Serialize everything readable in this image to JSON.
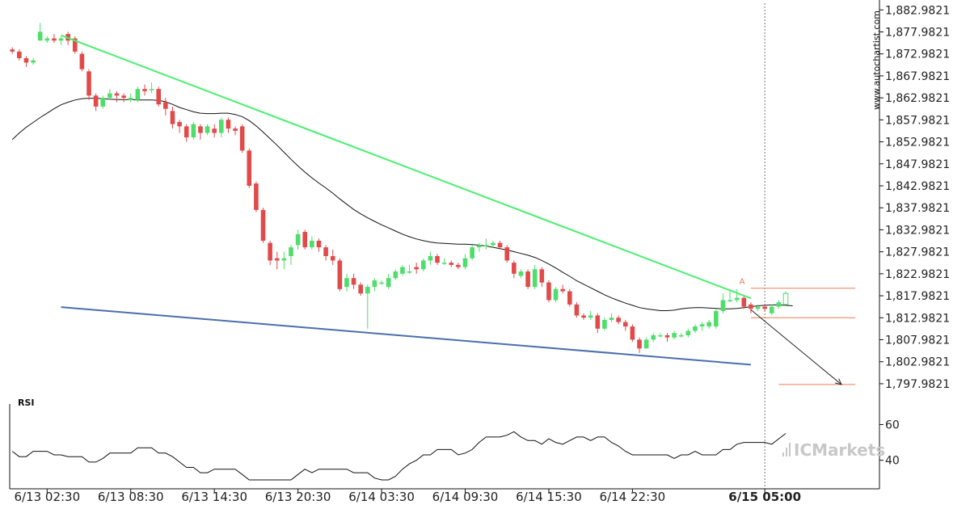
{
  "chart_data": {
    "type": "candlestick",
    "y_ticks": [
      "1,882.9821",
      "1,877.9821",
      "1,872.9821",
      "1,867.9821",
      "1,862.9821",
      "1,857.9821",
      "1,852.9821",
      "1,847.9821",
      "1,842.9821",
      "1,837.9821",
      "1,832.9821",
      "1,827.9821",
      "1,822.9821",
      "1,817.9821",
      "1,812.9821",
      "1,807.9821",
      "1,802.9821",
      "1,797.9821"
    ],
    "ylim": [
      1796.5,
      1884.5
    ],
    "x_ticks": [
      {
        "label": "6/13 02:30",
        "bar": 5
      },
      {
        "label": "6/13 08:30",
        "bar": 17
      },
      {
        "label": "6/13 14:30",
        "bar": 29
      },
      {
        "label": "6/13 20:30",
        "bar": 41
      },
      {
        "label": "6/14 03:30",
        "bar": 53
      },
      {
        "label": "6/14 09:30",
        "bar": 65
      },
      {
        "label": "6/14 15:30",
        "bar": 77
      },
      {
        "label": "6/14 22:30",
        "bar": 89
      },
      {
        "label": "6/15 05:00",
        "bar": 108,
        "bold": true
      }
    ],
    "candles": [
      [
        1874.0,
        1873.5,
        1874.5,
        1873.0
      ],
      [
        1873.5,
        1872.0,
        1874.0,
        1871.5
      ],
      [
        1872.0,
        1871.0,
        1872.5,
        1870.0
      ],
      [
        1871.0,
        1871.5,
        1872.0,
        1870.5
      ],
      [
        1876.0,
        1878.0,
        1880.0,
        1876.0
      ],
      [
        1876.0,
        1876.5,
        1877.0,
        1875.5
      ],
      [
        1876.5,
        1876.0,
        1877.5,
        1875.5
      ],
      [
        1876.0,
        1876.5,
        1877.0,
        1875.0
      ],
      [
        1877.5,
        1876.0,
        1878.0,
        1875.0
      ],
      [
        1876.5,
        1873.5,
        1877.0,
        1873.0
      ],
      [
        1873.0,
        1869.5,
        1873.5,
        1869.0
      ],
      [
        1869.0,
        1863.5,
        1869.5,
        1862.5
      ],
      [
        1863.5,
        1861.0,
        1864.0,
        1860.0
      ],
      [
        1861.0,
        1863.0,
        1863.5,
        1860.5
      ],
      [
        1863.0,
        1864.0,
        1865.0,
        1862.5
      ],
      [
        1864.0,
        1863.5,
        1864.5,
        1862.0
      ],
      [
        1863.5,
        1863.0,
        1864.0,
        1862.0
      ],
      [
        1862.5,
        1863.0,
        1864.0,
        1862.0
      ],
      [
        1862.5,
        1865.0,
        1865.5,
        1862.0
      ],
      [
        1865.0,
        1864.5,
        1866.0,
        1863.5
      ],
      [
        1865.0,
        1865.0,
        1866.5,
        1864.0
      ],
      [
        1865.0,
        1861.5,
        1865.5,
        1861.0
      ],
      [
        1862.0,
        1860.5,
        1863.0,
        1859.0
      ],
      [
        1860.0,
        1857.0,
        1861.0,
        1856.0
      ],
      [
        1857.5,
        1856.5,
        1858.0,
        1855.0
      ],
      [
        1856.5,
        1854.0,
        1857.0,
        1853.0
      ],
      [
        1854.0,
        1857.0,
        1857.5,
        1853.5
      ],
      [
        1856.5,
        1855.0,
        1857.0,
        1853.5
      ],
      [
        1855.0,
        1856.5,
        1857.0,
        1854.5
      ],
      [
        1856.0,
        1855.0,
        1857.0,
        1854.0
      ],
      [
        1855.0,
        1858.0,
        1858.5,
        1854.0
      ],
      [
        1858.0,
        1856.0,
        1858.5,
        1855.0
      ],
      [
        1856.0,
        1855.5,
        1856.5,
        1854.5
      ],
      [
        1856.5,
        1851.0,
        1857.0,
        1850.5
      ],
      [
        1851.0,
        1843.0,
        1851.5,
        1842.5
      ],
      [
        1843.5,
        1837.5,
        1844.0,
        1837.0
      ],
      [
        1837.5,
        1830.5,
        1838.0,
        1830.0
      ],
      [
        1830.0,
        1826.0,
        1830.5,
        1825.0
      ],
      [
        1826.5,
        1826.0,
        1828.0,
        1824.0
      ],
      [
        1826.0,
        1826.5,
        1828.0,
        1824.0
      ],
      [
        1827.0,
        1829.0,
        1829.5,
        1825.0
      ],
      [
        1829.5,
        1832.0,
        1833.0,
        1828.5
      ],
      [
        1832.5,
        1829.0,
        1833.0,
        1828.5
      ],
      [
        1829.0,
        1830.5,
        1831.5,
        1828.5
      ],
      [
        1830.5,
        1829.0,
        1831.0,
        1828.0
      ],
      [
        1829.0,
        1827.0,
        1829.5,
        1826.0
      ],
      [
        1827.0,
        1826.0,
        1828.5,
        1825.0
      ],
      [
        1826.0,
        1819.5,
        1826.5,
        1819.0
      ],
      [
        1820.0,
        1822.0,
        1823.0,
        1819.0
      ],
      [
        1822.0,
        1820.5,
        1823.0,
        1819.5
      ],
      [
        1820.5,
        1818.5,
        1821.0,
        1818.0
      ],
      [
        1818.5,
        1820.0,
        1820.5,
        1810.5
      ],
      [
        1820.0,
        1821.5,
        1822.0,
        1819.0
      ],
      [
        1821.0,
        1821.0,
        1821.5,
        1820.5
      ],
      [
        1820.0,
        1822.0,
        1823.0,
        1819.5
      ],
      [
        1822.0,
        1823.5,
        1824.0,
        1821.5
      ],
      [
        1823.0,
        1824.5,
        1825.0,
        1822.5
      ],
      [
        1823.5,
        1823.5,
        1825.0,
        1823.0
      ],
      [
        1824.5,
        1824.0,
        1825.5,
        1823.0
      ],
      [
        1824.0,
        1826.0,
        1826.5,
        1823.5
      ],
      [
        1826.0,
        1827.0,
        1828.0,
        1825.0
      ],
      [
        1827.0,
        1825.5,
        1827.5,
        1825.0
      ],
      [
        1825.5,
        1825.5,
        1826.5,
        1825.0
      ],
      [
        1825.5,
        1825.0,
        1826.0,
        1824.5
      ],
      [
        1825.0,
        1824.5,
        1825.5,
        1824.0
      ],
      [
        1824.5,
        1826.5,
        1827.5,
        1824.0
      ],
      [
        1826.5,
        1829.0,
        1829.5,
        1826.0
      ],
      [
        1829.0,
        1829.5,
        1830.0,
        1828.0
      ],
      [
        1829.5,
        1829.5,
        1831.0,
        1828.5
      ],
      [
        1829.5,
        1830.0,
        1830.5,
        1829.0
      ],
      [
        1830.0,
        1829.0,
        1830.5,
        1828.5
      ],
      [
        1829.0,
        1826.0,
        1829.5,
        1825.5
      ],
      [
        1825.5,
        1823.0,
        1826.0,
        1822.0
      ],
      [
        1822.5,
        1823.5,
        1824.0,
        1822.0
      ],
      [
        1823.5,
        1820.0,
        1824.0,
        1819.5
      ],
      [
        1820.0,
        1824.0,
        1825.0,
        1819.5
      ],
      [
        1824.0,
        1821.0,
        1824.5,
        1820.0
      ],
      [
        1821.0,
        1817.0,
        1821.5,
        1816.5
      ],
      [
        1817.0,
        1819.5,
        1820.0,
        1816.5
      ],
      [
        1819.5,
        1819.0,
        1820.5,
        1818.5
      ],
      [
        1819.0,
        1816.0,
        1819.5,
        1815.5
      ],
      [
        1816.0,
        1813.5,
        1816.5,
        1813.0
      ],
      [
        1813.5,
        1813.0,
        1814.0,
        1812.5
      ],
      [
        1813.0,
        1813.5,
        1814.5,
        1812.5
      ],
      [
        1813.5,
        1810.5,
        1814.0,
        1809.5
      ],
      [
        1810.5,
        1812.5,
        1813.0,
        1810.0
      ],
      [
        1812.5,
        1813.0,
        1814.0,
        1812.0
      ],
      [
        1813.0,
        1812.0,
        1813.5,
        1811.5
      ],
      [
        1812.0,
        1811.0,
        1812.5,
        1810.0
      ],
      [
        1811.0,
        1808.0,
        1811.5,
        1807.5
      ],
      [
        1808.0,
        1806.0,
        1808.5,
        1805.0
      ],
      [
        1806.0,
        1808.0,
        1808.5,
        1806.0
      ],
      [
        1808.0,
        1809.0,
        1809.5,
        1807.5
      ],
      [
        1809.0,
        1809.0,
        1809.5,
        1808.5
      ],
      [
        1809.0,
        1808.5,
        1809.5,
        1807.5
      ],
      [
        1808.5,
        1809.5,
        1810.0,
        1808.0
      ],
      [
        1809.0,
        1809.0,
        1809.5,
        1808.5
      ],
      [
        1809.0,
        1810.0,
        1810.5,
        1808.5
      ],
      [
        1810.0,
        1811.0,
        1811.5,
        1809.5
      ],
      [
        1811.0,
        1811.5,
        1812.0,
        1810.0
      ],
      [
        1811.0,
        1812.0,
        1812.5,
        1810.5
      ],
      [
        1811.0,
        1814.5,
        1815.0,
        1810.5
      ],
      [
        1814.5,
        1817.0,
        1818.5,
        1814.0
      ],
      [
        1817.0,
        1817.0,
        1819.5,
        1816.5
      ],
      [
        1817.0,
        1817.5,
        1819.5,
        1816.5
      ],
      [
        1817.5,
        1815.5,
        1818.0,
        1815.0
      ],
      [
        1816.0,
        1815.0,
        1816.5,
        1814.0
      ],
      [
        1815.0,
        1815.5,
        1816.0,
        1814.5
      ],
      [
        1815.5,
        1815.0,
        1816.0,
        1814.5
      ],
      [
        1814.0,
        1815.5,
        1816.0,
        1813.5
      ],
      [
        1815.5,
        1816.5,
        1817.0,
        1815.0
      ],
      [
        1816.0,
        1818.5,
        1819.0,
        1816.0
      ]
    ],
    "ma_series": [
      1853.5,
      1855.0,
      1856.3,
      1857.4,
      1858.5,
      1859.5,
      1860.5,
      1861.4,
      1862.0,
      1862.5,
      1862.8,
      1862.9,
      1862.9,
      1862.8,
      1862.7,
      1862.6,
      1862.6,
      1862.6,
      1862.5,
      1862.5,
      1862.5,
      1862.4,
      1862.1,
      1861.5,
      1860.8,
      1860.3,
      1859.8,
      1859.5,
      1859.4,
      1859.4,
      1859.5,
      1859.5,
      1859.2,
      1858.7,
      1857.8,
      1856.6,
      1855.2,
      1853.7,
      1852.2,
      1850.6,
      1849.0,
      1847.5,
      1846.1,
      1844.8,
      1843.6,
      1842.5,
      1841.3,
      1840.0,
      1838.8,
      1837.6,
      1836.6,
      1835.7,
      1834.9,
      1834.1,
      1833.4,
      1832.7,
      1832.0,
      1831.4,
      1830.9,
      1830.5,
      1830.2,
      1830.0,
      1829.9,
      1829.8,
      1829.7,
      1829.7,
      1829.6,
      1829.5,
      1829.3,
      1829.0,
      1828.7,
      1828.4,
      1828.0,
      1827.6,
      1827.2,
      1826.7,
      1826.0,
      1825.2,
      1824.3,
      1823.3,
      1822.4,
      1821.4,
      1820.6,
      1819.8,
      1819.0,
      1818.2,
      1817.5,
      1816.9,
      1816.3,
      1815.8,
      1815.3,
      1815.0,
      1814.8,
      1814.6,
      1814.6,
      1814.7,
      1815.0,
      1815.2,
      1815.3,
      1815.3,
      1815.2,
      1815.1,
      1815.0,
      1815.0,
      1815.1,
      1815.3,
      1815.5,
      1815.7,
      1815.8,
      1815.9,
      1815.9,
      1815.8,
      1815.7
    ],
    "resistance_line": {
      "start": [
        7,
        1877.2
      ],
      "end": [
        106,
        1817.4
      ]
    },
    "support_line": {
      "start": [
        7,
        1815.4
      ],
      "end": [
        106,
        1802.3
      ]
    },
    "forecast_arrow": {
      "start": [
        106,
        1814.8
      ],
      "end": [
        119,
        1797.8
      ]
    },
    "levels": [
      {
        "value": 1819.7,
        "from_bar": 106,
        "to_bar": 121
      },
      {
        "value": 1813.0,
        "from_bar": 106,
        "to_bar": 121
      },
      {
        "value": 1797.8,
        "from_bar": 110,
        "to_bar": 121
      }
    ],
    "marker_label": {
      "text": "A",
      "bar": 104,
      "value": 1820.7
    },
    "current_bar": 108,
    "rsi": {
      "label": "RSI",
      "y_ticks": [
        "60",
        "40"
      ],
      "ylim": [
        24,
        67
      ],
      "values": [
        45,
        42,
        42,
        45,
        45,
        45,
        43,
        43,
        42,
        42,
        42,
        39,
        39,
        41,
        44,
        44,
        44,
        44,
        47,
        47,
        47,
        44,
        44,
        42,
        39,
        36,
        36,
        33,
        33,
        35,
        35,
        35,
        35,
        32,
        29,
        29,
        29,
        29,
        29,
        29,
        29,
        32,
        35,
        33,
        35,
        35,
        35,
        35,
        35,
        33,
        33,
        33,
        30,
        29,
        29,
        31,
        35,
        38,
        40,
        43,
        43,
        46,
        46,
        46,
        43,
        44,
        46,
        50,
        53,
        53,
        53,
        54,
        56,
        53,
        51,
        51,
        49,
        52,
        50,
        49,
        51,
        53,
        53,
        51,
        53,
        53,
        50,
        48,
        45,
        43,
        43,
        43,
        43,
        43,
        43,
        41,
        43,
        43,
        45,
        43,
        43,
        43,
        46,
        46,
        49,
        50,
        50,
        50,
        50,
        49,
        52,
        55
      ]
    },
    "watermark": "www.autochartist.com",
    "brand": "ICMarkets"
  }
}
